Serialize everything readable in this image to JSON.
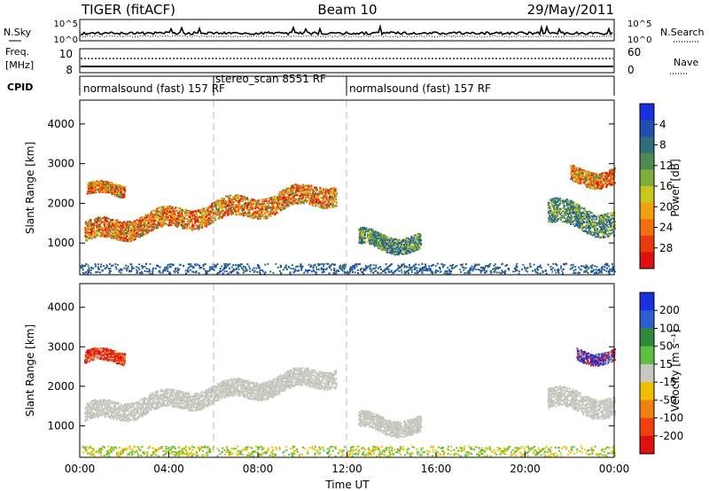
{
  "header": {
    "left_title": "TIGER (fitACF)",
    "center_title": "Beam 10",
    "date": "29/May/2011"
  },
  "strips": {
    "nsky_label": "N.Sky",
    "nsky_ticks": [
      "10^5",
      "10^0"
    ],
    "nsearch_ticks": [
      "10^5",
      "10^0"
    ],
    "nsearch_label": "N.Search",
    "freq_label_1": "Freq.",
    "freq_label_2": "[MHz]",
    "freq_ticks": [
      "10",
      "8"
    ],
    "nave_ticks": [
      "60",
      "0"
    ],
    "nave_label": "Nave",
    "cpid_label": "CPID",
    "cpid_modes": [
      "normalsound (fast) 157 RF",
      "stereo_scan 8551 RF",
      "normalsound (fast) 157 RF"
    ]
  },
  "chart_data": [
    {
      "type": "heatmap",
      "panel": "Power",
      "ylabel": "Slant Range [km]",
      "xlabel": "",
      "ylim": [
        200,
        4600
      ],
      "xlim_hours": [
        0,
        24
      ],
      "yticks": [
        "1000",
        "2000",
        "3000",
        "4000"
      ],
      "colorbar_label": "Power [dB]",
      "colorbar_ticks": [
        "4",
        "8",
        "12",
        "16",
        "20",
        "24",
        "28"
      ],
      "colorbar_colors": [
        "#1a2fe0",
        "#1f4fb0",
        "#2f6e7a",
        "#4f8a50",
        "#7fae3a",
        "#c9c81a",
        "#f0a010",
        "#f07010",
        "#e83c10",
        "#e01010"
      ],
      "mode_boundaries_hours": [
        6,
        12
      ],
      "echo_regions": [
        {
          "t0": 0.2,
          "t1": 11.5,
          "r_center_start": 1250,
          "r_center_end": 2300,
          "thickness": 500,
          "level": "high"
        },
        {
          "t0": 12.5,
          "t1": 15.3,
          "r_center_start": 1100,
          "r_center_end": 1000,
          "thickness": 400,
          "level": "medium"
        },
        {
          "t0": 21.0,
          "t1": 24.0,
          "r_center_start": 1800,
          "r_center_end": 1500,
          "thickness": 600,
          "level": "medium"
        },
        {
          "t0": 0.3,
          "t1": 2.0,
          "r_center_start": 2300,
          "r_center_end": 2400,
          "thickness": 300,
          "level": "high"
        },
        {
          "t0": 22.0,
          "t1": 24.0,
          "r_center_start": 2700,
          "r_center_end": 2700,
          "thickness": 400,
          "level": "high"
        }
      ]
    },
    {
      "type": "heatmap",
      "panel": "Velocity",
      "ylabel": "Slant Range [km]",
      "xlabel": "Time UT",
      "ylim": [
        200,
        4600
      ],
      "xlim_hours": [
        0,
        24
      ],
      "xticks": [
        "00:00",
        "04:00",
        "08:00",
        "12:00",
        "16:00",
        "20:00",
        "00:00"
      ],
      "yticks": [
        "1000",
        "2000",
        "3000",
        "4000"
      ],
      "colorbar_label": "Velocity [m s⁻¹]",
      "colorbar_ticks": [
        "200",
        "100",
        "50",
        "15",
        "-15",
        "-50",
        "-100",
        "-200"
      ],
      "colorbar_colors": [
        "#1a2fe0",
        "#2f5fcf",
        "#2f8a3a",
        "#5fc040",
        "#c8c8c0",
        "#f0c000",
        "#f08010",
        "#f04010",
        "#e01010"
      ],
      "mode_boundaries_hours": [
        6,
        12
      ],
      "echo_regions": [
        {
          "t0": 0.2,
          "t1": 11.5,
          "r_center_start": 1300,
          "r_center_end": 2300,
          "thickness": 450,
          "level": "ground"
        },
        {
          "t0": 12.5,
          "t1": 15.3,
          "r_center_start": 1100,
          "r_center_end": 1000,
          "thickness": 400,
          "level": "ground"
        },
        {
          "t0": 21.0,
          "t1": 24.0,
          "r_center_start": 1700,
          "r_center_end": 1500,
          "thickness": 500,
          "level": "ground"
        },
        {
          "t0": 0.2,
          "t1": 2.0,
          "r_center_start": 2700,
          "r_center_end": 2800,
          "thickness": 300,
          "level": "neg-high"
        },
        {
          "t0": 22.3,
          "t1": 24.0,
          "r_center_start": 2800,
          "r_center_end": 2800,
          "thickness": 300,
          "level": "pos-high"
        }
      ]
    }
  ]
}
